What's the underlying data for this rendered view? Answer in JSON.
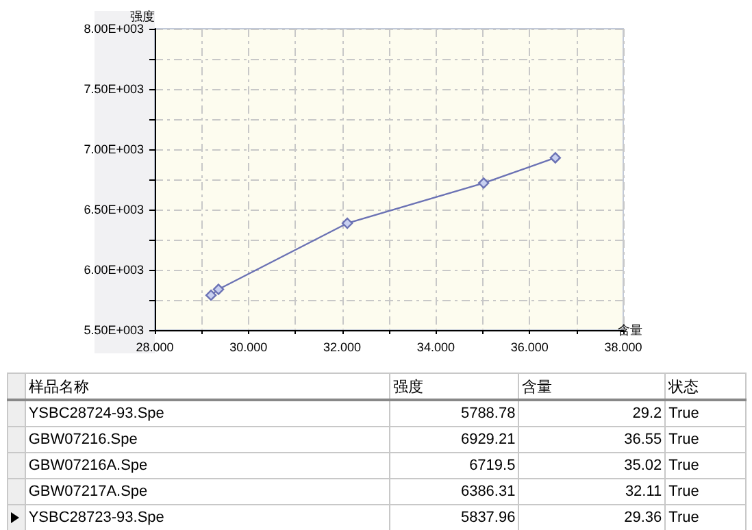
{
  "chart_data": [
    {
      "type": "line",
      "ylabel": "强度",
      "xlabel": "含量",
      "marker": "diamond",
      "grid": true,
      "x": [
        29.2,
        29.36,
        32.11,
        35.02,
        36.55
      ],
      "series": [
        {
          "color": "#6b72b4",
          "values": [
            5788.78,
            5837.96,
            6386.31,
            6719.5,
            6929.21
          ]
        }
      ],
      "xlim": [
        28,
        38
      ],
      "xticks": [
        {
          "value": 28,
          "label": "28.000"
        },
        {
          "value": 29,
          "label": null
        },
        {
          "value": 30,
          "label": "30.000"
        },
        {
          "value": 31,
          "label": null
        },
        {
          "value": 32,
          "label": "32.000"
        },
        {
          "value": 33,
          "label": null
        },
        {
          "value": 34,
          "label": "34.000"
        },
        {
          "value": 35,
          "label": null
        },
        {
          "value": 36,
          "label": "36.000"
        },
        {
          "value": 37,
          "label": null
        },
        {
          "value": 38,
          "label": "38.000"
        }
      ],
      "ylim": [
        5500,
        8000
      ],
      "yticks": [
        {
          "value": 5500,
          "label": "5.50E+003"
        },
        {
          "value": 5750,
          "label": null
        },
        {
          "value": 6000,
          "label": "6.00E+003"
        },
        {
          "value": 6250,
          "label": null
        },
        {
          "value": 6500,
          "label": "6.50E+003"
        },
        {
          "value": 6750,
          "label": null
        },
        {
          "value": 7000,
          "label": "7.00E+003"
        },
        {
          "value": 7250,
          "label": null
        },
        {
          "value": 7500,
          "label": "7.50E+003"
        },
        {
          "value": 7750,
          "label": null
        },
        {
          "value": 8000,
          "label": "8.00E+003"
        }
      ]
    },
    {
      "type": "other",
      "legend_title": "样品名称",
      "categories": [
        "YSBC28724-93.Spe",
        "GBW07216.Spe",
        "GBW07216A.Spe",
        "GBW07217A.Spe",
        "YSBC28723-93.Spe"
      ],
      "data_labels": true,
      "series": [
        {
          "name": "强度",
          "values": [
            5788.78,
            6929.21,
            6719.5,
            6386.31,
            5837.96
          ]
        },
        {
          "name": "含量",
          "values": [
            29.2,
            36.55,
            35.02,
            32.11,
            29.36
          ]
        },
        {
          "name": "状态",
          "values": [
            null,
            null,
            null,
            null,
            null
          ],
          "value_labels": [
            "True",
            "True",
            "True",
            "True",
            "True"
          ]
        }
      ]
    }
  ]
}
